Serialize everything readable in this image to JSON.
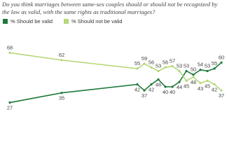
{
  "chart_data": {
    "type": "line",
    "title": "Do you think marriages between same-sex couples should or should not be recognized by the law as valid, with the same rights as traditional marriages?",
    "categories": [
      null,
      null,
      null,
      null,
      null,
      null,
      null,
      null,
      null,
      null,
      null,
      null,
      null,
      null,
      null
    ],
    "series": [
      {
        "name": "% Should be valid",
        "color": "#1e7a3a",
        "values": [
          27,
          35,
          42,
          37,
          42,
          46,
          40,
          40,
          44,
          53,
          50,
          54,
          53,
          55,
          60
        ]
      },
      {
        "name": "% Should not be valid",
        "color": "#b6d77a",
        "values": [
          68,
          62,
          55,
          59,
          56,
          53,
          56,
          57,
          53,
          45,
          48,
          43,
          45,
          42,
          37
        ]
      }
    ],
    "ylim": [
      25,
      70
    ]
  }
}
